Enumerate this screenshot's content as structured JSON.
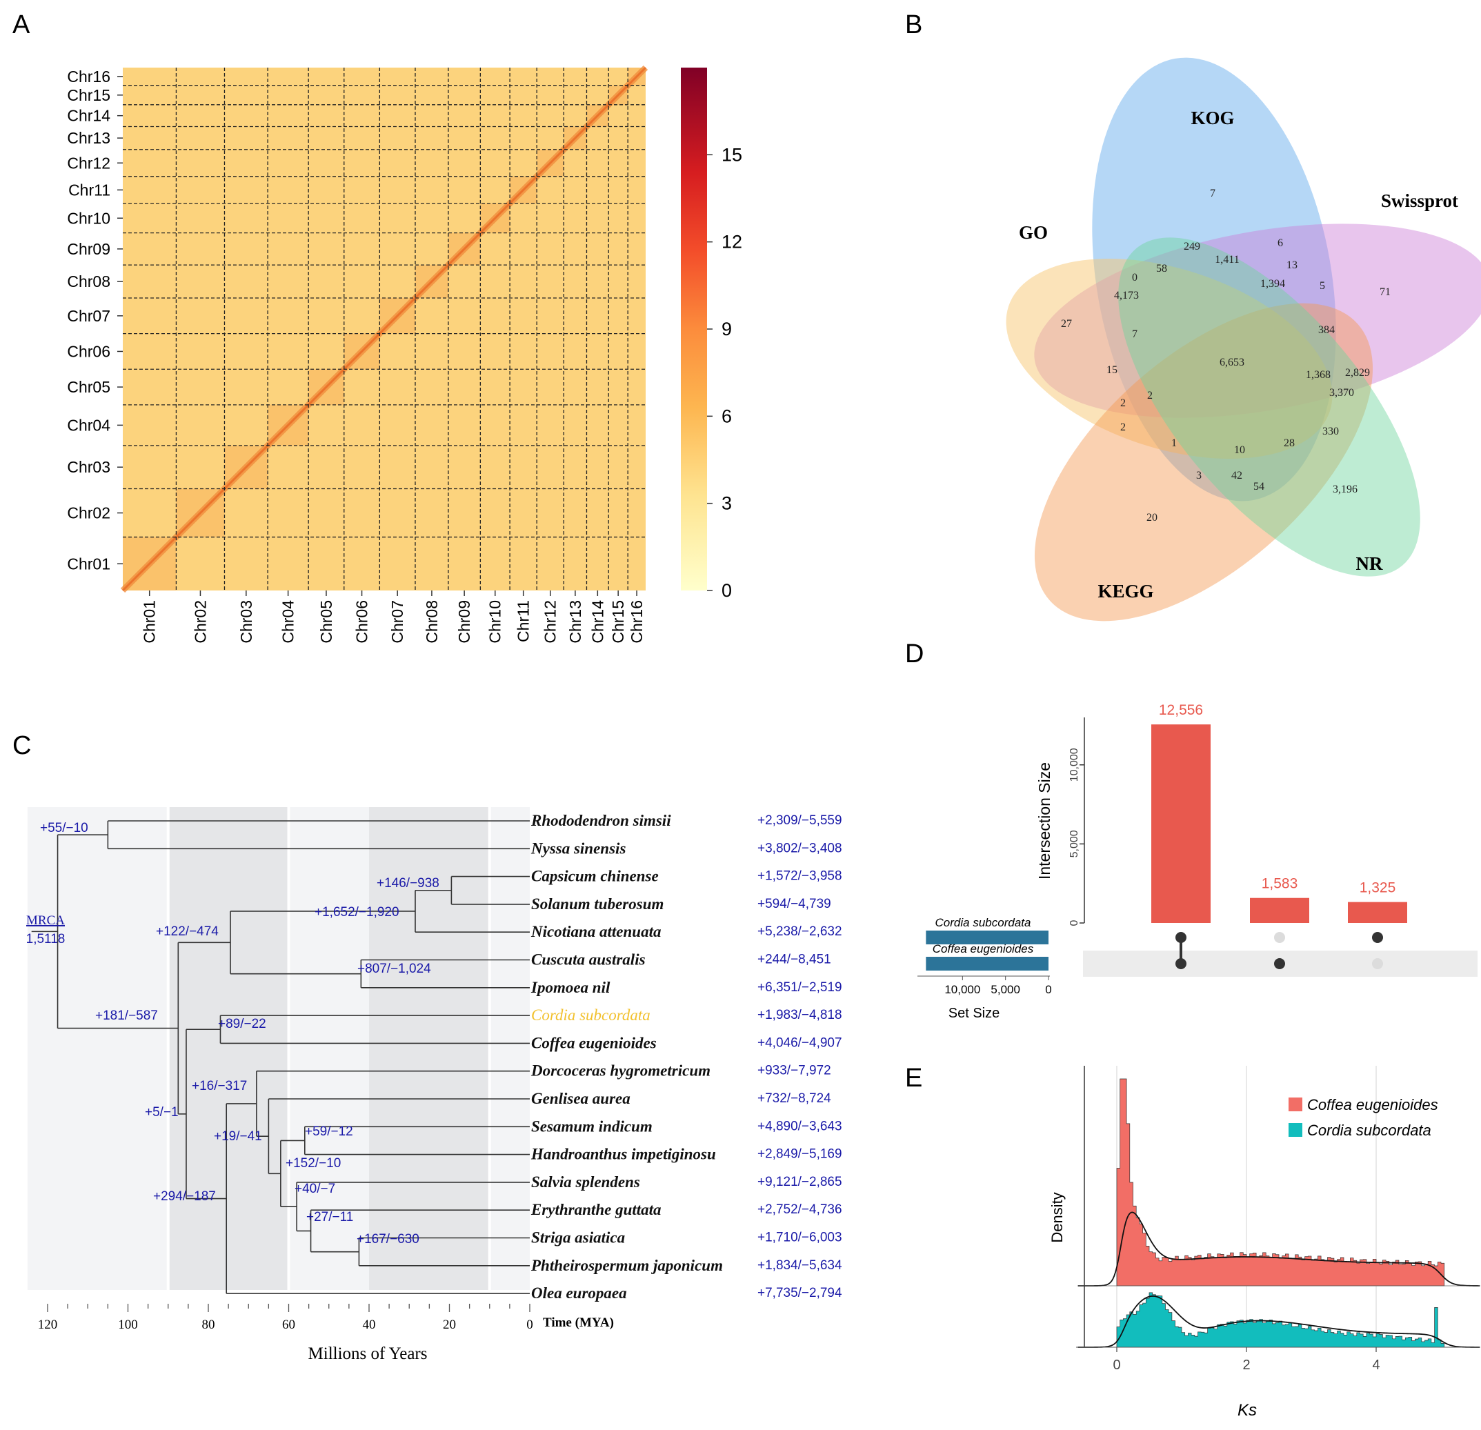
{
  "panels": {
    "a": "A",
    "b": "B",
    "c": "C",
    "d": "D",
    "e": "E"
  },
  "colors": {
    "tree_line": "#333333",
    "gain_loss": "#1a1aa8",
    "highlight": "#f2c12e",
    "venn_kog": "#5aa7ea",
    "venn_swissprot": "#cd7fd8",
    "venn_go": "#f7c873",
    "venn_kegg": "#f59a52",
    "venn_nr": "#6fd49e",
    "upset_bar": "#e8594e",
    "set_bar": "#2c7499",
    "ks_coffea": "#f26e66",
    "ks_cordia": "#12bdbd"
  },
  "chart_data": [
    {
      "panel": "A",
      "type": "heatmap",
      "title": "",
      "chromosomes": [
        "Chr01",
        "Chr02",
        "Chr03",
        "Chr04",
        "Chr05",
        "Chr06",
        "Chr07",
        "Chr08",
        "Chr09",
        "Chr10",
        "Chr11",
        "Chr12",
        "Chr13",
        "Chr14",
        "Chr15",
        "Chr16"
      ],
      "chrom_rel_sizes": [
        10.5,
        9.5,
        8.5,
        8.0,
        7.0,
        7.0,
        7.0,
        6.5,
        6.3,
        5.8,
        5.3,
        5.3,
        4.5,
        4.3,
        3.8,
        3.5
      ],
      "colorbar": {
        "min": 0,
        "max": 18,
        "ticks": [
          0,
          3,
          6,
          9,
          12,
          15
        ]
      }
    },
    {
      "panel": "B",
      "type": "venn",
      "sets": [
        "KOG",
        "Swissprot",
        "GO",
        "KEGG",
        "NR"
      ],
      "region_values": [
        "7",
        "71",
        "27",
        "20",
        "3,196",
        "249",
        "6",
        "0",
        "58",
        "1,411",
        "13",
        "4,173",
        "1,394",
        "5",
        "7",
        "384",
        "15",
        "6,653",
        "1,368",
        "2,829",
        "3,370",
        "2",
        "2",
        "2",
        "1",
        "10",
        "28",
        "330",
        "3",
        "42",
        "54"
      ]
    },
    {
      "panel": "C",
      "type": "tree",
      "xlabel": "Millions of Years",
      "time_label": "Time (MYA)",
      "time_ticks": [
        120,
        100,
        80,
        60,
        40,
        20,
        0
      ],
      "root_label": "MRCA",
      "root_value": "1,5118",
      "species": [
        {
          "name": "Rhododendron simsii",
          "changes": "+2,309/−5,559"
        },
        {
          "name": "Nyssa sinensis",
          "changes": "+3,802/−3,408"
        },
        {
          "name": "Capsicum chinense",
          "changes": "+1,572/−3,958"
        },
        {
          "name": "Solanum tuberosum",
          "changes": "+594/−4,739"
        },
        {
          "name": "Nicotiana attenuata",
          "changes": "+5,238/−2,632"
        },
        {
          "name": "Cuscuta australis",
          "changes": "+244/−8,451"
        },
        {
          "name": "Ipomoea nil",
          "changes": "+6,351/−2,519"
        },
        {
          "name": "Cordia subcordata",
          "changes": "+1,983/−4,818"
        },
        {
          "name": "Coffea eugenioides",
          "changes": "+4,046/−4,907"
        },
        {
          "name": "Dorcoceras hygrometricum",
          "changes": "+933/−7,972"
        },
        {
          "name": "Genlisea aurea",
          "changes": "+732/−8,724"
        },
        {
          "name": "Sesamum indicum",
          "changes": "+4,890/−3,643"
        },
        {
          "name": "Handroanthus impetiginosu",
          "changes": "+2,849/−5,169"
        },
        {
          "name": "Salvia splendens",
          "changes": "+9,121/−2,865"
        },
        {
          "name": "Erythranthe guttata",
          "changes": "+2,752/−4,736"
        },
        {
          "name": "Striga asiatica",
          "changes": "+1,710/−6,003"
        },
        {
          "name": "Phtheirospermum japonicum",
          "changes": "+1,834/−5,634"
        },
        {
          "name": "Olea europaea",
          "changes": "+7,735/−2,794"
        }
      ],
      "node_labels": [
        "+55/−10",
        "+146/−938",
        "+1,652/−1,920",
        "+122/−474",
        "+807/−1,024",
        "+181/−587",
        "+89/−22",
        "+16/−317",
        "+5/−1",
        "+19/−41",
        "+59/−12",
        "+152/−10",
        "+40/−7",
        "+27/−11",
        "+167/−630",
        "+294/−187"
      ]
    },
    {
      "panel": "D",
      "type": "bar",
      "ylabel": "Intersection Size",
      "yticks": [
        0,
        5000,
        10000
      ],
      "ytick_labels": [
        "0",
        "5,000",
        "10,000"
      ],
      "ylim": [
        0,
        13000
      ],
      "values": [
        12556,
        1583,
        1325
      ],
      "value_labels": [
        "12,556",
        "1,583",
        "1,325"
      ],
      "sets": [
        "Cordia subcordata",
        "Coffea eugenioides"
      ],
      "set_sizes": [
        14250,
        14250
      ],
      "set_size_label": "Set Size",
      "set_size_ticks": [
        "10,000",
        "5,000",
        "0"
      ]
    },
    {
      "panel": "E",
      "type": "area",
      "xlabel": "Ks",
      "ylabel": "Density",
      "xticks": [
        0,
        2,
        4
      ],
      "xlim": [
        -0.6,
        5.6
      ],
      "series": [
        {
          "name": "Coffea eugenioides"
        },
        {
          "name": "Cordia subcordata"
        }
      ]
    }
  ]
}
